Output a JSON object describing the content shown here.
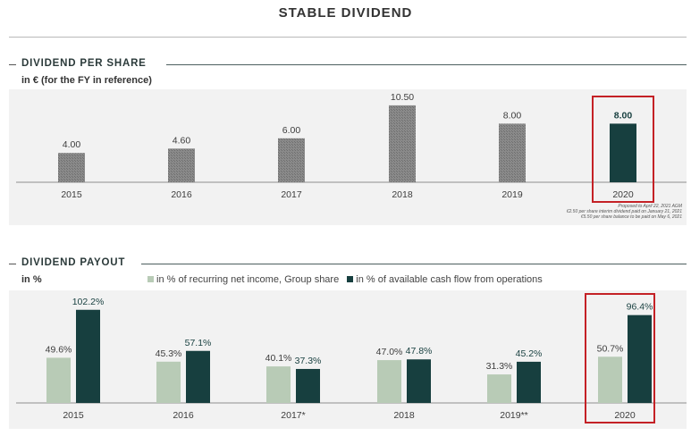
{
  "page": {
    "title": "STABLE DIVIDEND",
    "colors": {
      "dark": "#173f3f",
      "light": "#b8cbb6",
      "gray": "#7b7b7b",
      "highlight": "#c42126"
    }
  },
  "chart_data": [
    {
      "type": "bar",
      "section_label": "DIVIDEND PER SHARE",
      "subtitle": "in € (for the FY in reference)",
      "categories": [
        "2015",
        "2016",
        "2017",
        "2018",
        "2019",
        "2020"
      ],
      "values": [
        4.0,
        4.6,
        6.0,
        10.5,
        8.0,
        8.0
      ],
      "value_labels": [
        "4.00",
        "4.60",
        "6.00",
        "10.50",
        "8.00",
        "8.00"
      ],
      "ylim": [
        0,
        11.5
      ],
      "highlight_category": "2020",
      "notes": [
        "Proposed to April 22, 2021 AGM",
        "€2.50 per share interim dividend paid on January 21, 2021",
        "€5.50 per share balance to be paid on May 6, 2021"
      ]
    },
    {
      "type": "bar",
      "section_label": "DIVIDEND PAYOUT",
      "subtitle": "in %",
      "categories": [
        "2015",
        "2016",
        "2017*",
        "2018",
        "2019**",
        "2020"
      ],
      "series": [
        {
          "name": "in % of recurring net income, Group share",
          "values": [
            49.6,
            45.3,
            40.1,
            47.0,
            31.3,
            50.7
          ],
          "labels": [
            "49.6%",
            "45.3%",
            "40.1%",
            "47.0%",
            "31.3%",
            "50.7%"
          ]
        },
        {
          "name": "in % of available cash flow from operations",
          "values": [
            102.2,
            57.1,
            37.3,
            47.8,
            45.2,
            96.4
          ],
          "labels": [
            "102.2%",
            "57.1%",
            "37.3%",
            "47.8%",
            "45.2%",
            "96.4%"
          ]
        }
      ],
      "ylim": [
        0,
        110
      ],
      "highlight_category": "2020"
    }
  ]
}
